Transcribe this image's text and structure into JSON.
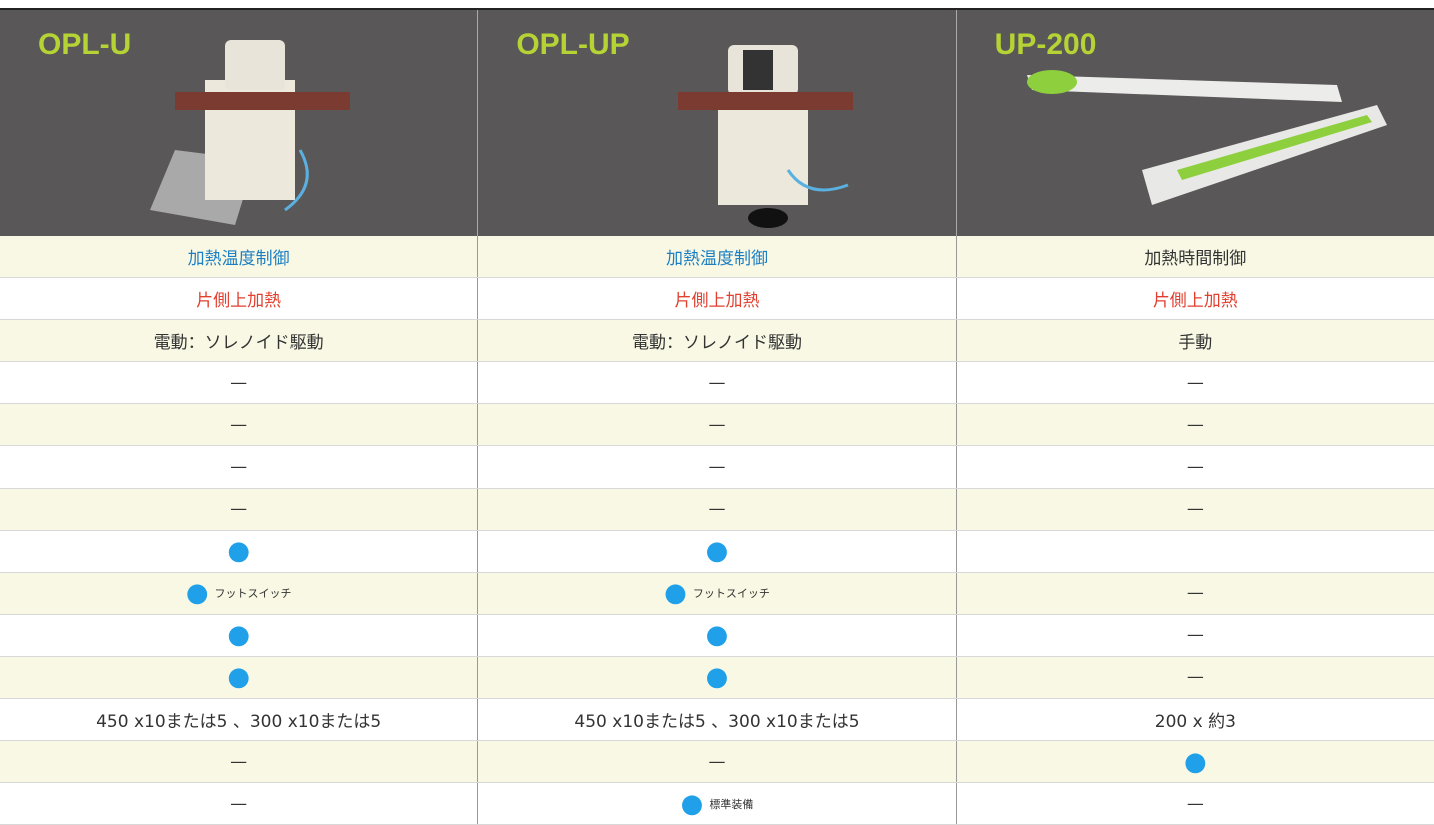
{
  "header": {
    "products": [
      "OPL-U",
      "OPL-UP",
      "UP-200"
    ]
  },
  "table": {
    "rows": [
      [
        [
          "加熱温度制御"
        ],
        [
          "加熱温度制御"
        ],
        [
          "加熱時間制御"
        ]
      ],
      [
        [
          "片側上加熱"
        ],
        [
          "片側上加熱"
        ],
        [
          "片側上加熱"
        ]
      ],
      [
        [
          "電動：ソレノイド駆動"
        ],
        [
          "電動：ソレノイド駆動"
        ],
        [
          "手動"
        ]
      ],
      [
        [
          "—"
        ],
        [
          "—"
        ],
        [
          "—"
        ]
      ],
      [
        [
          "—"
        ],
        [
          "—"
        ],
        [
          "—"
        ]
      ],
      [
        [
          "—"
        ],
        [
          "—"
        ],
        [
          "—"
        ]
      ],
      [
        [
          "—"
        ],
        [
          "—"
        ],
        [
          "—"
        ]
      ],
      [
        [
          "●"
        ],
        [
          "●"
        ],
        []
      ],
      [
        [
          "●",
          "フットスイッチ"
        ],
        [
          "●",
          "フットスイッチ"
        ],
        [
          "—"
        ]
      ],
      [
        [
          "●"
        ],
        [
          "●"
        ],
        [
          "—"
        ]
      ],
      [
        [
          "●"
        ],
        [
          "●"
        ],
        [
          "—"
        ]
      ],
      [
        [
          "450 x10または5 、300 x10または5"
        ],
        [
          "450 x10または5 、300 x10または5"
        ],
        [
          "200 x 約3"
        ]
      ],
      [
        [
          "—"
        ],
        [
          "—"
        ],
        [
          "●"
        ]
      ],
      [
        [
          "—"
        ],
        [
          "●",
          "標準装備"
        ],
        [
          "—"
        ]
      ]
    ]
  }
}
